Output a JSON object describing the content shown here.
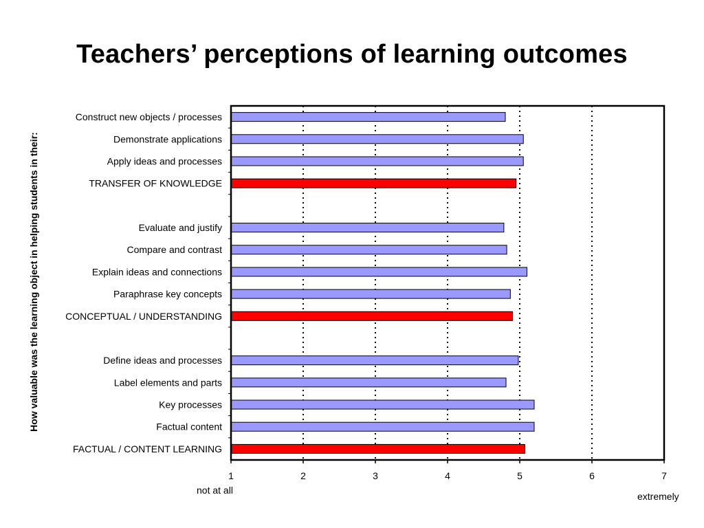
{
  "page": {
    "title": "Teachers’ perceptions of learning outcomes",
    "y_axis_title": "How valuable was the learning object in helping students in their:",
    "x_low_note": "not at all",
    "x_high_note": "extremely"
  },
  "chart_data": {
    "type": "bar",
    "orientation": "horizontal",
    "title": "Teachers’ perceptions of learning outcomes",
    "ylabel": "How valuable was the learning object in helping students in their:",
    "xlabel": "",
    "xlim": [
      1,
      7
    ],
    "x_ticks": [
      "1",
      "2",
      "3",
      "4",
      "5",
      "6",
      "7"
    ],
    "grid": "vertical dotted",
    "colors": {
      "item": "#9999ff",
      "category": "#ff0000"
    },
    "categories": [
      {
        "label": "Construct new objects / processes",
        "value": 4.8,
        "kind": "item"
      },
      {
        "label": "Demonstrate applications",
        "value": 5.05,
        "kind": "item"
      },
      {
        "label": "Apply ideas and processes",
        "value": 5.05,
        "kind": "item"
      },
      {
        "label": "TRANSFER OF KNOWLEDGE",
        "value": 4.95,
        "kind": "category"
      },
      {
        "label": "",
        "value": null,
        "kind": "gap"
      },
      {
        "label": "Evaluate and justify",
        "value": 4.78,
        "kind": "item"
      },
      {
        "label": "Compare and contrast",
        "value": 4.82,
        "kind": "item"
      },
      {
        "label": "Explain ideas and connections",
        "value": 5.1,
        "kind": "item"
      },
      {
        "label": "Paraphrase key concepts",
        "value": 4.87,
        "kind": "item"
      },
      {
        "label": "CONCEPTUAL / UNDERSTANDING",
        "value": 4.9,
        "kind": "category"
      },
      {
        "label": "",
        "value": null,
        "kind": "gap"
      },
      {
        "label": "Define ideas and processes",
        "value": 4.98,
        "kind": "item"
      },
      {
        "label": "Label elements and parts",
        "value": 4.81,
        "kind": "item"
      },
      {
        "label": "Key processes",
        "value": 5.2,
        "kind": "item"
      },
      {
        "label": "Factual content",
        "value": 5.2,
        "kind": "item"
      },
      {
        "label": "FACTUAL / CONTENT LEARNING",
        "value": 5.07,
        "kind": "category"
      }
    ]
  }
}
